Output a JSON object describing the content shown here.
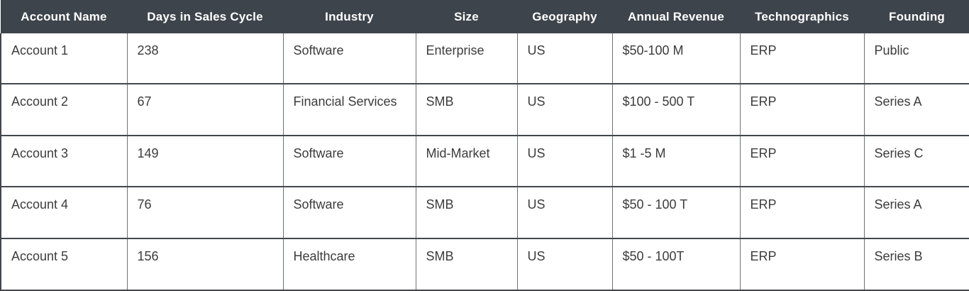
{
  "table": {
    "headers": [
      "Account Name",
      "Days in Sales Cycle",
      "Industry",
      "Size",
      "Geography",
      "Annual Revenue",
      "Technographics",
      "Founding"
    ],
    "rows": [
      [
        "Account 1",
        "238",
        "Software",
        "Enterprise",
        "US",
        "$50-100 M",
        "ERP",
        "Public"
      ],
      [
        "Account 2",
        "67",
        "Financial Services",
        "SMB",
        "US",
        "$100 - 500 T",
        "ERP",
        "Series A"
      ],
      [
        "Account 3",
        "149",
        "Software",
        "Mid-Market",
        "US",
        "$1 -5 M",
        "ERP",
        "Series C"
      ],
      [
        "Account 4",
        "76",
        "Software",
        "SMB",
        "US",
        "$50 - 100 T",
        "ERP",
        "Series A"
      ],
      [
        "Account 5",
        "156",
        "Healthcare",
        "SMB",
        "US",
        "$50 - 100T",
        "ERP",
        "Series B"
      ]
    ]
  },
  "colors": {
    "header_bg": "#3E444B",
    "header_text": "#FFFFFF",
    "cell_text": "#3C3C3C",
    "row_divider": "#42474D",
    "column_divider": "#6E7276"
  }
}
